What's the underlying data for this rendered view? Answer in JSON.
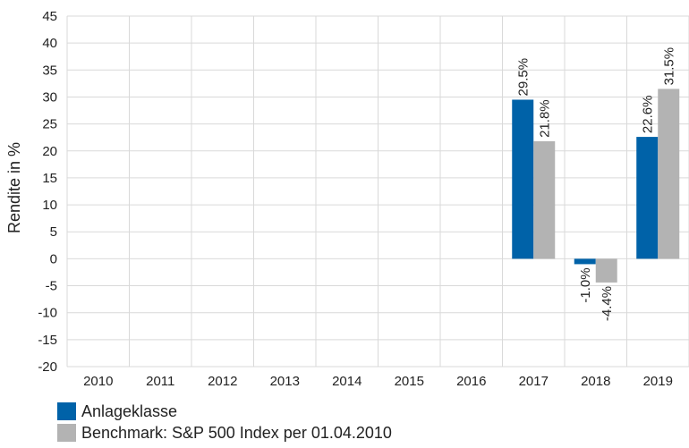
{
  "chart_data": {
    "type": "bar",
    "categories": [
      "2010",
      "2011",
      "2012",
      "2013",
      "2014",
      "2015",
      "2016",
      "2017",
      "2018",
      "2019"
    ],
    "series": [
      {
        "name": "Anlageklasse",
        "color": "#0062a8",
        "values": [
          null,
          null,
          null,
          null,
          null,
          null,
          null,
          29.5,
          -1.0,
          22.6
        ],
        "labels": [
          "",
          "",
          "",
          "",
          "",
          "",
          "",
          "29.5%",
          "-1.0%",
          "22.6%"
        ]
      },
      {
        "name": "Benchmark: S&P 500 Index per 01.04.2010",
        "color": "#b3b3b3",
        "values": [
          null,
          null,
          null,
          null,
          null,
          null,
          null,
          21.8,
          -4.4,
          31.5
        ],
        "labels": [
          "",
          "",
          "",
          "",
          "",
          "",
          "",
          "21.8%",
          "-4.4%",
          "31.5%"
        ]
      }
    ],
    "ylabel": "Rendite in %",
    "ylim": [
      -20,
      45
    ],
    "yticks": [
      45,
      40,
      35,
      30,
      25,
      20,
      15,
      10,
      5,
      0,
      -5,
      -10,
      -15,
      -20
    ],
    "ytick_labels": [
      "45",
      "40",
      "35",
      "30",
      "25",
      "20",
      "15",
      "10",
      "5",
      "0",
      "-5",
      "-10",
      "-15",
      "-20"
    ],
    "grid": true,
    "legend_position": "bottom-left"
  }
}
